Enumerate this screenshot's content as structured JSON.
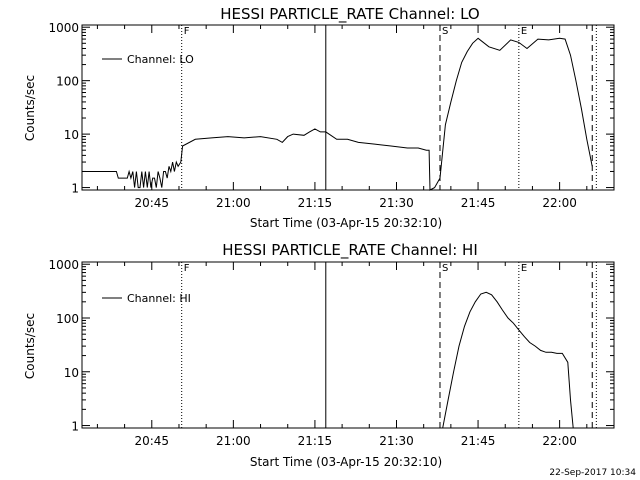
{
  "timestamp": "22-Sep-2017 10:34",
  "colors": {
    "background": "#ffffff",
    "foreground": "#000000"
  },
  "chart_data": [
    {
      "type": "line",
      "title": "HESSI PARTICLE_RATE Channel: LO",
      "xlabel": "Start Time (03-Apr-15 20:32:10)",
      "ylabel": "Counts/sec",
      "yscale": "log",
      "ylim": [
        0.9,
        1100
      ],
      "xlim": [
        "20:32:10",
        "22:10:00"
      ],
      "x_ticks": [
        "20:45",
        "21:00",
        "21:15",
        "21:30",
        "21:45",
        "22:00"
      ],
      "y_ticks": [
        "1",
        "10",
        "100",
        "1000"
      ],
      "legend": {
        "position": "top-left",
        "entries": [
          "Channel: LO"
        ]
      },
      "markers": [
        {
          "label": "F",
          "time": "20:50:30",
          "style": "dotted"
        },
        {
          "label": "",
          "time": "21:17:00",
          "style": "solid"
        },
        {
          "label": "S",
          "time": "21:38:00",
          "style": "dashed"
        },
        {
          "label": "E",
          "time": "21:52:30",
          "style": "dotted"
        },
        {
          "label": "",
          "time": "22:06:00",
          "style": "dashed"
        },
        {
          "label": "",
          "time": "22:06:45",
          "style": "dotted"
        }
      ],
      "series": [
        {
          "name": "Channel: LO",
          "x": [
            "20:32:10",
            "20:38:30",
            "20:38:50",
            "20:40:30",
            "20:40:50",
            "20:41:10",
            "20:41:30",
            "20:41:50",
            "20:42:10",
            "20:42:30",
            "20:42:50",
            "20:43:10",
            "20:43:30",
            "20:43:50",
            "20:44:10",
            "20:44:30",
            "20:44:50",
            "20:45:10",
            "20:45:30",
            "20:45:50",
            "20:46:10",
            "20:46:30",
            "20:46:50",
            "20:47:10",
            "20:47:30",
            "20:47:50",
            "20:48:10",
            "20:48:30",
            "20:48:50",
            "20:49:10",
            "20:49:30",
            "20:49:50",
            "20:50:20",
            "20:50:40",
            "20:53:00",
            "20:56:00",
            "20:59:00",
            "21:02:00",
            "21:05:00",
            "21:08:00",
            "21:09:00",
            "21:10:00",
            "21:11:00",
            "21:13:00",
            "21:14:00",
            "21:15:00",
            "21:16:00",
            "21:17:00",
            "21:19:00",
            "21:21:00",
            "21:23:00",
            "21:26:00",
            "21:29:00",
            "21:32:00",
            "21:34:00",
            "21:35:30",
            "21:36:00",
            "21:36:10",
            "21:37:00",
            "21:38:00",
            "21:39:00",
            "21:40:00",
            "21:41:00",
            "21:42:00",
            "21:43:00",
            "21:44:00",
            "21:45:00",
            "21:47:00",
            "21:49:00",
            "21:51:00",
            "21:52:30",
            "21:54:00",
            "21:56:00",
            "21:58:00",
            "22:00:00",
            "22:01:00",
            "22:02:00",
            "22:03:00",
            "22:04:00",
            "22:05:00",
            "22:06:00"
          ],
          "y": [
            2,
            2,
            1.5,
            1.5,
            2,
            1.5,
            2,
            1,
            2,
            1,
            1,
            2,
            1,
            2,
            1,
            2,
            1,
            1.5,
            1.5,
            1,
            2,
            1.5,
            1,
            2,
            2,
            1.5,
            2.5,
            2,
            3,
            2,
            3,
            2.5,
            3,
            6,
            8,
            8.5,
            9,
            8.5,
            9,
            8,
            7,
            9,
            10,
            9.5,
            11,
            12.5,
            11,
            11,
            8,
            8,
            7,
            6.5,
            6,
            5.5,
            5.5,
            5,
            5,
            0.9,
            1,
            1.5,
            15,
            40,
            100,
            220,
            350,
            500,
            620,
            430,
            370,
            580,
            520,
            400,
            600,
            580,
            620,
            600,
            300,
            100,
            30,
            8,
            2.5
          ]
        }
      ]
    },
    {
      "type": "line",
      "title": "HESSI PARTICLE_RATE Channel: HI",
      "xlabel": "Start Time (03-Apr-15 20:32:10)",
      "ylabel": "Counts/sec",
      "yscale": "log",
      "ylim": [
        0.9,
        1100
      ],
      "xlim": [
        "20:32:10",
        "22:10:00"
      ],
      "x_ticks": [
        "20:45",
        "21:00",
        "21:15",
        "21:30",
        "21:45",
        "22:00"
      ],
      "y_ticks": [
        "1",
        "10",
        "100",
        "1000"
      ],
      "legend": {
        "position": "top-left",
        "entries": [
          "Channel: HI"
        ]
      },
      "markers": [
        {
          "label": "F",
          "time": "20:50:30",
          "style": "dotted"
        },
        {
          "label": "",
          "time": "21:17:00",
          "style": "solid"
        },
        {
          "label": "S",
          "time": "21:38:00",
          "style": "dashed"
        },
        {
          "label": "E",
          "time": "21:52:30",
          "style": "dotted"
        },
        {
          "label": "",
          "time": "22:06:00",
          "style": "dashed"
        },
        {
          "label": "",
          "time": "22:06:45",
          "style": "dotted"
        }
      ],
      "series": [
        {
          "name": "Channel: HI",
          "x": [
            "21:38:30",
            "21:39:30",
            "21:40:30",
            "21:41:30",
            "21:42:30",
            "21:43:30",
            "21:44:30",
            "21:45:30",
            "21:46:30",
            "21:47:30",
            "21:48:30",
            "21:49:30",
            "21:50:30",
            "21:51:30",
            "21:52:30",
            "21:53:30",
            "21:54:30",
            "21:55:30",
            "21:56:30",
            "21:57:30",
            "21:58:30",
            "21:59:30",
            "22:00:30",
            "22:01:30",
            "22:02:00",
            "22:02:30"
          ],
          "y": [
            0.9,
            3,
            10,
            30,
            70,
            130,
            200,
            280,
            300,
            270,
            200,
            140,
            100,
            80,
            60,
            45,
            35,
            30,
            25,
            23,
            23,
            22,
            22,
            15,
            3,
            0.9
          ]
        }
      ]
    }
  ]
}
